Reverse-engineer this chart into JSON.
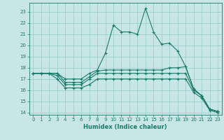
{
  "title": "",
  "xlabel": "Humidex (Indice chaleur)",
  "background_color": "#c8e6e6",
  "grid_color": "#9ecece",
  "line_color": "#1a7a6a",
  "xlim": [
    -0.5,
    23.5
  ],
  "ylim": [
    13.8,
    23.8
  ],
  "yticks": [
    14,
    15,
    16,
    17,
    18,
    19,
    20,
    21,
    22,
    23
  ],
  "xticks": [
    0,
    1,
    2,
    3,
    4,
    5,
    6,
    7,
    8,
    9,
    10,
    11,
    12,
    13,
    14,
    15,
    16,
    17,
    18,
    19,
    20,
    21,
    22,
    23
  ],
  "lines": [
    {
      "x": [
        0,
        1,
        2,
        3,
        4,
        5,
        6,
        7,
        8,
        9,
        10,
        11,
        12,
        13,
        14,
        15,
        16,
        17,
        18,
        19,
        20,
        21,
        22,
        23
      ],
      "y": [
        17.5,
        17.5,
        17.5,
        17.5,
        17.0,
        17.0,
        17.0,
        17.5,
        17.8,
        19.3,
        21.8,
        21.2,
        21.2,
        21.0,
        23.3,
        21.2,
        20.1,
        20.2,
        19.5,
        18.1,
        16.1,
        15.5,
        14.3,
        14.1
      ]
    },
    {
      "x": [
        0,
        1,
        2,
        3,
        4,
        5,
        6,
        7,
        8,
        9,
        10,
        11,
        12,
        13,
        14,
        15,
        16,
        17,
        18,
        19,
        20,
        21,
        22,
        23
      ],
      "y": [
        17.5,
        17.5,
        17.5,
        17.5,
        16.7,
        16.7,
        16.7,
        17.2,
        17.7,
        17.8,
        17.8,
        17.8,
        17.8,
        17.8,
        17.8,
        17.8,
        17.8,
        18.0,
        18.0,
        18.1,
        16.1,
        15.5,
        14.3,
        14.1
      ]
    },
    {
      "x": [
        0,
        1,
        2,
        3,
        4,
        5,
        6,
        7,
        8,
        9,
        10,
        11,
        12,
        13,
        14,
        15,
        16,
        17,
        18,
        19,
        20,
        21,
        22,
        23
      ],
      "y": [
        17.5,
        17.5,
        17.5,
        17.3,
        16.5,
        16.5,
        16.5,
        17.0,
        17.5,
        17.5,
        17.5,
        17.5,
        17.5,
        17.5,
        17.5,
        17.5,
        17.5,
        17.5,
        17.5,
        17.5,
        16.0,
        15.5,
        14.3,
        14.1
      ]
    },
    {
      "x": [
        0,
        1,
        2,
        3,
        4,
        5,
        6,
        7,
        8,
        9,
        10,
        11,
        12,
        13,
        14,
        15,
        16,
        17,
        18,
        19,
        20,
        21,
        22,
        23
      ],
      "y": [
        17.5,
        17.5,
        17.5,
        17.0,
        16.2,
        16.2,
        16.2,
        16.5,
        17.0,
        17.0,
        17.0,
        17.0,
        17.0,
        17.0,
        17.0,
        17.0,
        17.0,
        17.0,
        17.0,
        17.0,
        15.8,
        15.3,
        14.2,
        14.0
      ]
    }
  ]
}
